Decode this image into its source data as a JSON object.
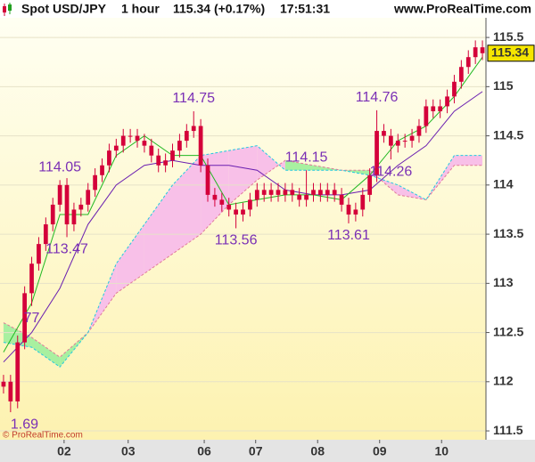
{
  "chart_data": {
    "type": "candlestick",
    "title": "Spot USD/JPY",
    "interval": "1 hour",
    "last_change": "115.34 (+0.17%)",
    "time": "17:51:31",
    "site": "www.ProRealTime.com",
    "copyright": "© ProRealTime.com",
    "color": "#d4003a",
    "x": [
      0,
      1,
      2,
      3,
      4,
      5,
      6,
      7,
      8,
      9,
      10,
      11,
      12,
      13,
      14,
      15,
      16,
      17,
      18,
      19,
      20,
      21,
      22,
      23,
      24,
      25,
      26,
      27,
      28,
      29,
      30,
      31,
      32,
      33,
      34,
      35,
      36,
      37,
      38,
      39,
      40,
      41,
      42,
      43,
      44,
      45,
      46,
      47,
      48,
      49,
      50,
      51,
      52,
      53,
      54,
      55,
      56,
      57,
      58,
      59,
      60,
      61,
      62,
      63,
      64,
      65,
      66,
      67,
      68
    ],
    "open": [
      111.95,
      112.0,
      111.8,
      112.4,
      112.9,
      113.2,
      113.4,
      113.6,
      113.8,
      114.0,
      113.6,
      113.75,
      113.8,
      113.95,
      114.1,
      114.2,
      114.35,
      114.4,
      114.5,
      114.5,
      114.45,
      114.4,
      114.3,
      114.2,
      114.25,
      114.35,
      114.45,
      114.55,
      114.6,
      114.2,
      113.9,
      113.85,
      113.8,
      113.75,
      113.7,
      113.75,
      113.85,
      113.95,
      113.9,
      113.95,
      113.9,
      113.95,
      113.9,
      113.85,
      113.9,
      113.95,
      113.9,
      113.95,
      113.9,
      113.8,
      113.7,
      113.75,
      113.9,
      114.1,
      114.55,
      114.5,
      114.4,
      114.45,
      114.45,
      114.5,
      114.6,
      114.8,
      114.75,
      114.8,
      114.9,
      115.05,
      115.2,
      115.3,
      115.4
    ],
    "high": [
      112.07,
      112.07,
      112.47,
      112.97,
      113.27,
      113.47,
      113.67,
      113.87,
      114.05,
      114.07,
      113.82,
      113.87,
      114.02,
      114.17,
      114.27,
      114.42,
      114.47,
      114.57,
      114.57,
      114.57,
      114.52,
      114.47,
      114.37,
      114.32,
      114.42,
      114.52,
      114.62,
      114.75,
      114.67,
      114.27,
      113.97,
      113.92,
      113.87,
      113.82,
      113.82,
      113.92,
      114.02,
      114.02,
      114.02,
      114.02,
      114.02,
      114.02,
      113.97,
      114.15,
      114.02,
      114.02,
      114.02,
      114.02,
      113.97,
      113.87,
      113.82,
      113.97,
      114.17,
      114.76,
      114.62,
      114.57,
      114.52,
      114.52,
      114.57,
      114.67,
      114.87,
      114.87,
      114.87,
      114.97,
      115.12,
      115.27,
      115.37,
      115.47,
      115.47
    ],
    "low": [
      111.88,
      111.69,
      111.73,
      112.33,
      112.77,
      113.13,
      113.33,
      113.53,
      113.73,
      113.47,
      113.53,
      113.68,
      113.73,
      113.88,
      114.03,
      114.13,
      114.28,
      114.33,
      114.43,
      114.38,
      114.33,
      114.23,
      114.13,
      114.13,
      114.18,
      114.28,
      114.38,
      114.48,
      114.13,
      113.83,
      113.78,
      113.73,
      113.68,
      113.56,
      113.63,
      113.68,
      113.78,
      113.83,
      113.83,
      113.83,
      113.83,
      113.83,
      113.78,
      113.78,
      113.83,
      113.83,
      113.83,
      113.83,
      113.73,
      113.61,
      113.63,
      113.68,
      113.83,
      114.03,
      114.43,
      114.26,
      114.33,
      114.38,
      114.38,
      114.43,
      114.53,
      114.68,
      114.68,
      114.73,
      114.83,
      114.98,
      115.13,
      115.23,
      115.27
    ],
    "close": [
      112.0,
      111.8,
      112.4,
      112.9,
      113.2,
      113.4,
      113.6,
      113.8,
      114.0,
      113.6,
      113.75,
      113.8,
      113.95,
      114.1,
      114.2,
      114.35,
      114.4,
      114.5,
      114.5,
      114.45,
      114.4,
      114.3,
      114.2,
      114.25,
      114.35,
      114.45,
      114.55,
      114.6,
      114.2,
      113.9,
      113.85,
      113.8,
      113.75,
      113.7,
      113.75,
      113.85,
      113.95,
      113.9,
      113.95,
      113.9,
      113.95,
      113.9,
      113.85,
      113.9,
      113.95,
      113.9,
      113.95,
      113.9,
      113.8,
      113.7,
      113.75,
      113.9,
      114.1,
      114.55,
      114.5,
      114.4,
      114.45,
      114.45,
      114.5,
      114.6,
      114.8,
      114.75,
      114.8,
      114.9,
      115.05,
      115.2,
      115.3,
      115.4,
      115.34
    ],
    "annotations": [
      {
        "label": "1.69",
        "value": 111.69,
        "at": "low"
      },
      {
        "label": "77",
        "value": 112.77,
        "at": "low"
      },
      {
        "label": "114.05",
        "value": 114.05,
        "at": "high"
      },
      {
        "label": "113.47",
        "value": 113.47,
        "at": "low"
      },
      {
        "label": "114.75",
        "value": 114.75,
        "at": "high"
      },
      {
        "label": "113.56",
        "value": 113.56,
        "at": "low"
      },
      {
        "label": "114.15",
        "value": 114.15,
        "at": "high"
      },
      {
        "label": "113.61",
        "value": 113.61,
        "at": "low"
      },
      {
        "label": "114.76",
        "value": 114.76,
        "at": "high"
      },
      {
        "label": "114.26",
        "value": 114.26,
        "at": "low"
      }
    ],
    "line_x": [
      0,
      4,
      8,
      12,
      16,
      20,
      24,
      28,
      32,
      36,
      40,
      44,
      48,
      52,
      56,
      60,
      64,
      68
    ],
    "tenkan": {
      "color": "#22b822",
      "values": [
        112.3,
        112.8,
        113.7,
        113.7,
        114.3,
        114.5,
        114.3,
        114.3,
        113.8,
        113.85,
        113.9,
        113.9,
        113.85,
        114.1,
        114.45,
        114.6,
        114.9,
        115.3
      ]
    },
    "kijun": {
      "color": "#6a1fb0",
      "values": [
        112.2,
        112.5,
        112.95,
        113.6,
        114.0,
        114.2,
        114.25,
        114.2,
        114.2,
        114.15,
        113.95,
        113.9,
        113.9,
        113.95,
        114.2,
        114.4,
        114.75,
        114.95
      ]
    },
    "senkou_a": {
      "color": "#e07a9a",
      "values": [
        112.6,
        112.45,
        112.25,
        112.5,
        112.9,
        113.1,
        113.3,
        113.5,
        113.8,
        114.05,
        114.25,
        114.2,
        114.15,
        114.15,
        113.9,
        113.85,
        114.2,
        114.2
      ]
    },
    "senkou_b": {
      "color": "#22c8e0",
      "values": [
        112.4,
        112.35,
        112.15,
        112.5,
        113.2,
        113.6,
        114.0,
        114.3,
        114.35,
        114.4,
        114.15,
        114.15,
        114.15,
        114.1,
        114.0,
        113.85,
        114.3,
        114.3
      ]
    },
    "cloud_up_color": "#a8f0a0",
    "cloud_down_color": "#f8c0e8",
    "xlim": [
      -0.5,
      68.5
    ],
    "xticks": [
      {
        "value": 8.6,
        "label": "02"
      },
      {
        "value": 17.7,
        "label": "03"
      },
      {
        "value": 28.5,
        "label": "06"
      },
      {
        "value": 35.8,
        "label": "07"
      },
      {
        "value": 44.6,
        "label": "08"
      },
      {
        "value": 53.4,
        "label": "09"
      },
      {
        "value": 62.2,
        "label": "10"
      }
    ],
    "ylim": [
      111.41,
      115.7
    ],
    "yticks": [
      111.5,
      112,
      112.5,
      113,
      113.5,
      114,
      114.5,
      115,
      115.5
    ],
    "grid": true
  }
}
